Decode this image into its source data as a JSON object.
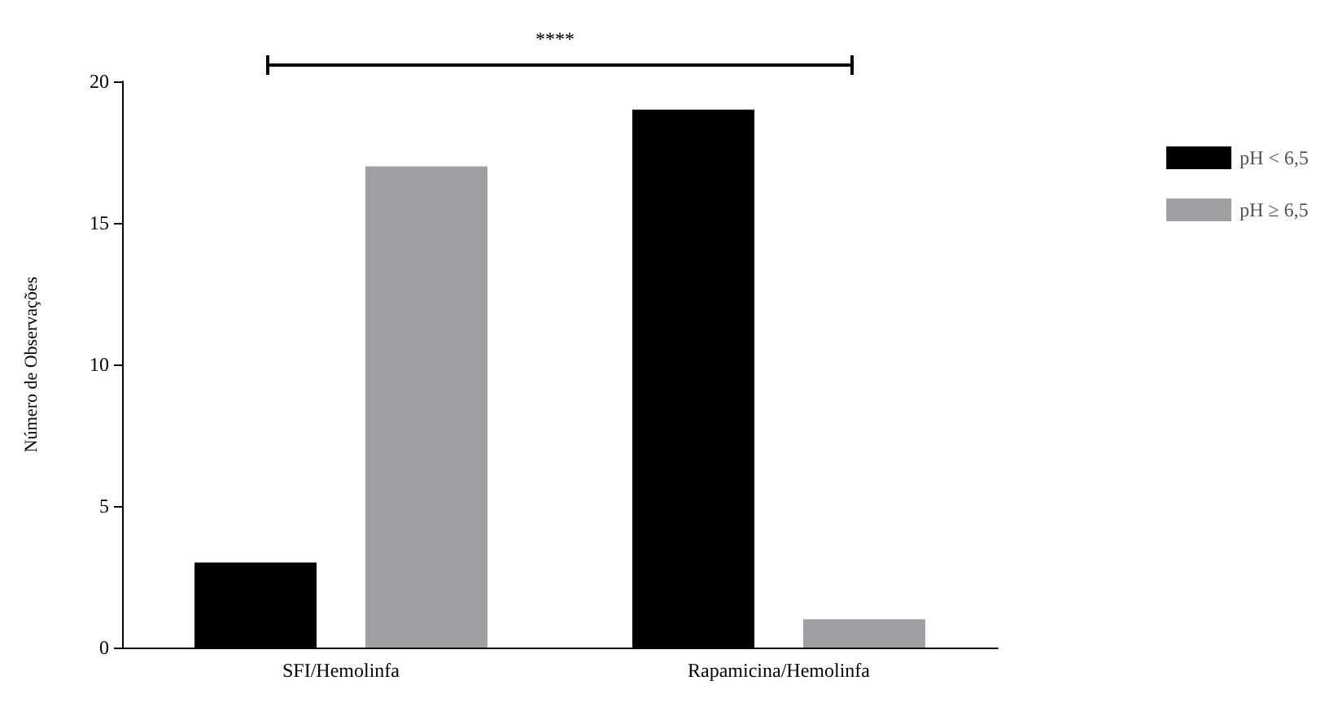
{
  "chart_data": {
    "type": "bar",
    "ylabel": "Número de Observações",
    "categories": [
      "SFI/Hemolinfa",
      "Rapamicina/Hemolinfa"
    ],
    "series": [
      {
        "name": "pH < 6,5",
        "color": "#000000",
        "values": [
          3,
          19
        ]
      },
      {
        "name": "pH ≥ 6,5",
        "color": "#a0a0a4",
        "values": [
          17,
          1
        ]
      }
    ],
    "ylim": [
      0,
      20
    ],
    "yticks": [
      0,
      5,
      10,
      15,
      20
    ],
    "grid": false,
    "legend": "top right",
    "annotations": [
      "****"
    ]
  }
}
